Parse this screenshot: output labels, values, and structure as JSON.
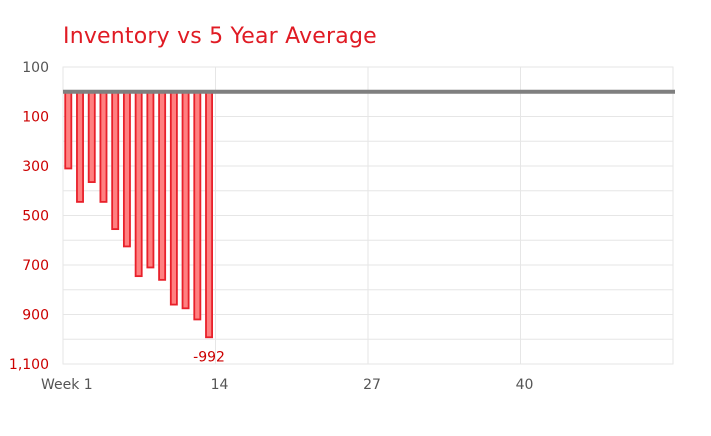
{
  "chart_data": {
    "type": "bar",
    "title": "Inventory vs 5 Year Average",
    "xlabel": "",
    "ylabel": "",
    "y_axis_range": [
      -1100,
      100
    ],
    "y_ticks": [
      {
        "value": 100,
        "label": "100",
        "color": "#555555"
      },
      {
        "value": -100,
        "label": "100",
        "color": "#cc0000"
      },
      {
        "value": -300,
        "label": "300",
        "color": "#cc0000"
      },
      {
        "value": -500,
        "label": "500",
        "color": "#cc0000"
      },
      {
        "value": -700,
        "label": "700",
        "color": "#cc0000"
      },
      {
        "value": -900,
        "label": "900",
        "color": "#cc0000"
      },
      {
        "value": -1100,
        "label": "1,100",
        "color": "#cc0000"
      }
    ],
    "x_axis_range": [
      1,
      53
    ],
    "x_ticks": [
      {
        "value": 1,
        "label": "Week 1"
      },
      {
        "value": 14,
        "label": "14"
      },
      {
        "value": 27,
        "label": "27"
      },
      {
        "value": 40,
        "label": "40"
      }
    ],
    "grid": true,
    "baseline": 0,
    "x": [
      1,
      2,
      3,
      4,
      5,
      6,
      7,
      8,
      9,
      10,
      11,
      12,
      13
    ],
    "values": [
      -310,
      -445,
      -365,
      -445,
      -555,
      -625,
      -745,
      -710,
      -760,
      -860,
      -875,
      -920,
      -992
    ],
    "annotation": {
      "x": 13,
      "value": -992,
      "text": "-992"
    },
    "colors": {
      "bar_fill": "#ff8080",
      "bar_stroke": "#e8202a",
      "baseline": "#7f7f7f",
      "grid": "#e6e6e6",
      "title": "#e01b24",
      "annotation": "#cc0000"
    }
  }
}
